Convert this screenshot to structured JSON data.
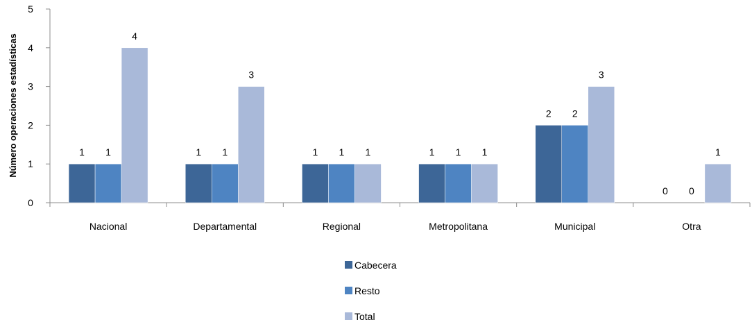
{
  "chart_data": {
    "type": "bar",
    "title": "",
    "xlabel": "",
    "ylabel": "Número operaciones estadísticas",
    "ylim": [
      0,
      5
    ],
    "yticks": [
      0,
      1,
      2,
      3,
      4,
      5
    ],
    "grid": false,
    "legend_placement": "bottom",
    "categories": [
      "Nacional",
      "Departamental",
      "Regional",
      "Metropolitana",
      "Municipal",
      "Otra"
    ],
    "series": [
      {
        "name": "Cabecera",
        "values": [
          1,
          1,
          1,
          1,
          2,
          0
        ],
        "color": "#3d6697"
      },
      {
        "name": "Resto",
        "values": [
          1,
          1,
          1,
          1,
          2,
          0
        ],
        "color": "#4e84c2"
      },
      {
        "name": "Total",
        "values": [
          4,
          3,
          1,
          1,
          3,
          1
        ],
        "color": "#a9b9d9"
      }
    ]
  }
}
